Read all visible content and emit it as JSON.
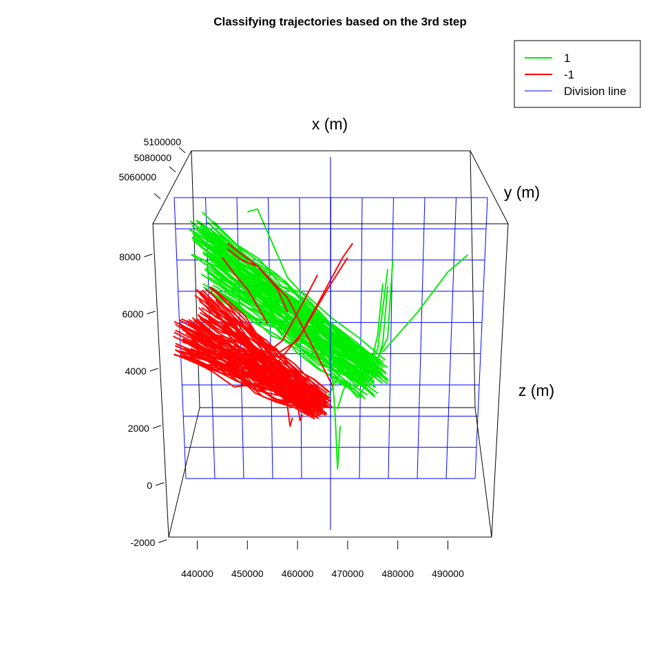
{
  "chart_data": {
    "type": "line",
    "projection": "3d",
    "title": "Classifying trajectories based on the 3rd step",
    "axes": {
      "x": {
        "label": "x (m)",
        "ticks": [
          "440000",
          "450000",
          "460000",
          "470000",
          "480000",
          "490000"
        ],
        "range": [
          435000,
          497000
        ]
      },
      "y": {
        "label": "y (m)",
        "ticks": [
          "5060000",
          "5080000",
          "5100000"
        ]
      },
      "z": {
        "label": "z (m)",
        "ticks": [
          "-2000",
          "0",
          "2000",
          "4000",
          "6000",
          "8000"
        ],
        "range": [
          -2000,
          9000
        ]
      }
    },
    "legend": {
      "position": "top-right",
      "entries": [
        {
          "label": "1",
          "color": "#00ee00"
        },
        {
          "label": "-1",
          "color": "#ff0000"
        },
        {
          "label": "Division line",
          "color": "#0000ff"
        }
      ]
    },
    "division_plane": {
      "color": "#0000ff",
      "grid": true
    },
    "series": [
      {
        "name": "1",
        "color": "#00ee00",
        "bundles": [
          {
            "from": [
              441000,
              8600
            ],
            "to": [
              476000,
              3900
            ],
            "count": 55,
            "spread": 650
          },
          {
            "from": [
              443000,
              7400
            ],
            "to": [
              474000,
              3400
            ],
            "count": 35,
            "spread": 600
          }
        ],
        "paths": [
          [
            [
              441000,
              9500
            ],
            [
              448000,
              8300
            ],
            [
              456000,
              7300
            ],
            [
              466000,
              5600
            ],
            [
              473000,
              4300
            ]
          ],
          [
            [
              450000,
              9500
            ],
            [
              452000,
              9600
            ],
            [
              454000,
              8800
            ],
            [
              458000,
              7200
            ],
            [
              466000,
              5700
            ],
            [
              472000,
              4600
            ]
          ],
          [
            [
              466000,
              4000
            ],
            [
              470000,
              3400
            ],
            [
              472000,
              3000
            ],
            [
              475000,
              3800
            ],
            [
              477000,
              4900
            ],
            [
              478000,
              6900
            ]
          ],
          [
            [
              467000,
              3600
            ],
            [
              471000,
              3300
            ],
            [
              474000,
              3700
            ],
            [
              476000,
              5200
            ],
            [
              477000,
              7000
            ]
          ],
          [
            [
              470000,
              4200
            ],
            [
              473000,
              3800
            ],
            [
              476000,
              4700
            ],
            [
              478000,
              7500
            ]
          ],
          [
            [
              472000,
              4300
            ],
            [
              475000,
              4000
            ],
            [
              478000,
              5100
            ],
            [
              479000,
              7800
            ]
          ],
          [
            [
              466000,
              4600
            ],
            [
              467000,
              3600
            ],
            [
              467500,
              2400
            ],
            [
              468000,
              500
            ],
            [
              468500,
              2000
            ]
          ],
          [
            [
              465000,
              2900
            ],
            [
              466000,
              3000
            ],
            [
              468000,
              3700
            ],
            [
              470000,
              4200
            ]
          ],
          [
            [
              477000,
              4600
            ],
            [
              484000,
              6000
            ],
            [
              490000,
              7400
            ],
            [
              494000,
              8000
            ]
          ],
          [
            [
              463000,
              5200
            ],
            [
              464000,
              4600
            ],
            [
              465000,
              4300
            ],
            [
              468000,
              3900
            ]
          ],
          [
            [
              468000,
              2600
            ],
            [
              469000,
              3200
            ],
            [
              470000,
              3600
            ]
          ]
        ]
      },
      {
        "name": "-1",
        "color": "#ff0000",
        "bundles": [
          {
            "from": [
              438000,
              5100
            ],
            "to": [
              464000,
              2700
            ],
            "count": 70,
            "spread": 700
          },
          {
            "from": [
              442000,
              6300
            ],
            "to": [
              465000,
              2800
            ],
            "count": 35,
            "spread": 650
          }
        ],
        "paths": [
          [
            [
              446000,
              8400
            ],
            [
              452000,
              7600
            ],
            [
              458000,
              6500
            ],
            [
              463000,
              4800
            ],
            [
              467000,
              3400
            ]
          ],
          [
            [
              453000,
              4200
            ],
            [
              460000,
              5000
            ],
            [
              465000,
              6600
            ],
            [
              469000,
              7900
            ],
            [
              471000,
              8400
            ]
          ],
          [
            [
              455000,
              4000
            ],
            [
              461000,
              5300
            ],
            [
              466000,
              6800
            ],
            [
              470000,
              7900
            ]
          ],
          [
            [
              452000,
              4300
            ],
            [
              457000,
              5000
            ],
            [
              461000,
              6300
            ],
            [
              464000,
              7300
            ]
          ],
          [
            [
              459000,
              3300
            ],
            [
              460000,
              2800
            ],
            [
              460500,
              2200
            ],
            [
              461000,
              2400
            ]
          ],
          [
            [
              457000,
              3500
            ],
            [
              458000,
              2700
            ],
            [
              458500,
              2000
            ],
            [
              459000,
              2300
            ]
          ],
          [
            [
              446000,
              8200
            ],
            [
              449000,
              7800
            ],
            [
              452000,
              7600
            ],
            [
              456000,
              6800
            ],
            [
              458000,
              6000
            ]
          ],
          [
            [
              445000,
              7900
            ],
            [
              448000,
              7200
            ],
            [
              450000,
              6800
            ],
            [
              454000,
              5600
            ]
          ]
        ]
      }
    ]
  }
}
